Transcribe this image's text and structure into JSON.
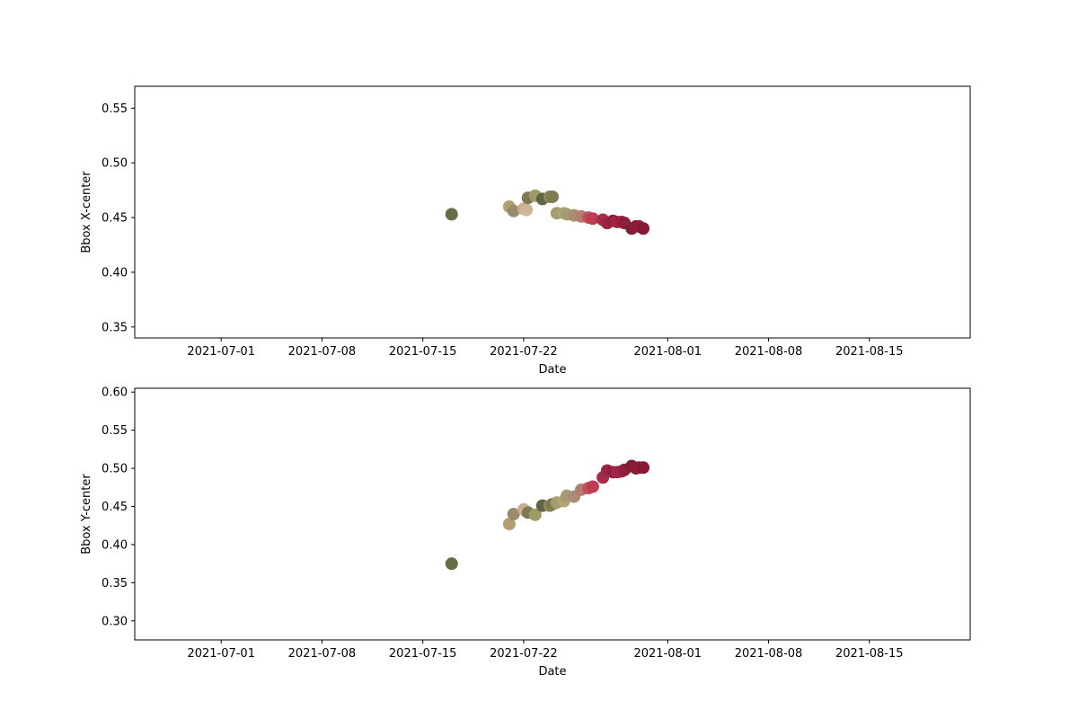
{
  "chart_data": [
    {
      "type": "scatter",
      "xlabel": "Date",
      "ylabel": "Bbox X-center",
      "x_axis_type": "date",
      "xlim": [
        "2021-06-25",
        "2021-08-22"
      ],
      "ylim": [
        0.34,
        0.57
      ],
      "x_ticks": [
        "2021-07-01",
        "2021-07-08",
        "2021-07-15",
        "2021-07-22",
        "2021-08-01",
        "2021-08-08",
        "2021-08-15"
      ],
      "y_ticks": [
        "0.35",
        "0.40",
        "0.45",
        "0.50",
        "0.55"
      ],
      "grid": false,
      "points": [
        {
          "x": "2021-07-17",
          "y": 0.453,
          "color": "#676d44"
        },
        {
          "x": "2021-07-21",
          "y": 0.46,
          "color": "#b39f72"
        },
        {
          "x": "2021-07-21.3",
          "y": 0.456,
          "color": "#9a8b6e"
        },
        {
          "x": "2021-07-22",
          "y": 0.458,
          "color": "#c9ac8a"
        },
        {
          "x": "2021-07-22.2",
          "y": 0.457,
          "color": "#d0b495"
        },
        {
          "x": "2021-07-22.3",
          "y": 0.468,
          "color": "#7c7953"
        },
        {
          "x": "2021-07-22.8",
          "y": 0.47,
          "color": "#a09a66"
        },
        {
          "x": "2021-07-23.3",
          "y": 0.467,
          "color": "#5f6443"
        },
        {
          "x": "2021-07-23.8",
          "y": 0.469,
          "color": "#8a8a5d"
        },
        {
          "x": "2021-07-24",
          "y": 0.469,
          "color": "#7d7b54"
        },
        {
          "x": "2021-07-24.3",
          "y": 0.454,
          "color": "#a49d70"
        },
        {
          "x": "2021-07-24.8",
          "y": 0.454,
          "color": "#b0a579"
        },
        {
          "x": "2021-07-25",
          "y": 0.453,
          "color": "#a69c72"
        },
        {
          "x": "2021-07-25.5",
          "y": 0.452,
          "color": "#a88c73"
        },
        {
          "x": "2021-07-26",
          "y": 0.451,
          "color": "#b37d6f"
        },
        {
          "x": "2021-07-26.5",
          "y": 0.45,
          "color": "#c24e5a"
        },
        {
          "x": "2021-07-26.8",
          "y": 0.449,
          "color": "#bd3e53"
        },
        {
          "x": "2021-07-27.5",
          "y": 0.448,
          "color": "#a72c48"
        },
        {
          "x": "2021-07-27.8",
          "y": 0.445,
          "color": "#9a2543"
        },
        {
          "x": "2021-07-28.2",
          "y": 0.447,
          "color": "#91213f"
        },
        {
          "x": "2021-07-28.5",
          "y": 0.446,
          "color": "#a22644"
        },
        {
          "x": "2021-07-28.8",
          "y": 0.446,
          "color": "#9b2242"
        },
        {
          "x": "2021-07-29",
          "y": 0.445,
          "color": "#8e1f3c"
        },
        {
          "x": "2021-07-29.5",
          "y": 0.44,
          "color": "#7b1f39"
        },
        {
          "x": "2021-07-29.8",
          "y": 0.442,
          "color": "#8a1c38"
        },
        {
          "x": "2021-07-30",
          "y": 0.442,
          "color": "#911a37"
        },
        {
          "x": "2021-07-30.3",
          "y": 0.44,
          "color": "#861a36"
        }
      ]
    },
    {
      "type": "scatter",
      "xlabel": "Date",
      "ylabel": "Bbox Y-center",
      "x_axis_type": "date",
      "xlim": [
        "2021-06-25",
        "2021-08-22"
      ],
      "ylim": [
        0.275,
        0.605
      ],
      "x_ticks": [
        "2021-07-01",
        "2021-07-08",
        "2021-07-15",
        "2021-07-22",
        "2021-08-01",
        "2021-08-08",
        "2021-08-15"
      ],
      "y_ticks": [
        "0.30",
        "0.35",
        "0.40",
        "0.45",
        "0.50",
        "0.55",
        "0.60"
      ],
      "grid": false,
      "points": [
        {
          "x": "2021-07-17",
          "y": 0.375,
          "color": "#676d44"
        },
        {
          "x": "2021-07-21",
          "y": 0.427,
          "color": "#b39f72"
        },
        {
          "x": "2021-07-21.3",
          "y": 0.44,
          "color": "#9a8b6e"
        },
        {
          "x": "2021-07-22",
          "y": 0.446,
          "color": "#c9ac8a"
        },
        {
          "x": "2021-07-22.2",
          "y": 0.443,
          "color": "#d0b495"
        },
        {
          "x": "2021-07-22.3",
          "y": 0.442,
          "color": "#7c7953"
        },
        {
          "x": "2021-07-22.8",
          "y": 0.439,
          "color": "#a09a66"
        },
        {
          "x": "2021-07-23.3",
          "y": 0.451,
          "color": "#5f6443"
        },
        {
          "x": "2021-07-23.8",
          "y": 0.451,
          "color": "#8a8a5d"
        },
        {
          "x": "2021-07-24",
          "y": 0.453,
          "color": "#7d7b54"
        },
        {
          "x": "2021-07-24.3",
          "y": 0.455,
          "color": "#a49d70"
        },
        {
          "x": "2021-07-24.8",
          "y": 0.457,
          "color": "#b0a579"
        },
        {
          "x": "2021-07-25",
          "y": 0.464,
          "color": "#a69c72"
        },
        {
          "x": "2021-07-25.5",
          "y": 0.463,
          "color": "#a88c73"
        },
        {
          "x": "2021-07-26",
          "y": 0.472,
          "color": "#b37d6f"
        },
        {
          "x": "2021-07-26.5",
          "y": 0.474,
          "color": "#c24e5a"
        },
        {
          "x": "2021-07-26.8",
          "y": 0.476,
          "color": "#bd3e53"
        },
        {
          "x": "2021-07-27.5",
          "y": 0.488,
          "color": "#a72c48"
        },
        {
          "x": "2021-07-27.8",
          "y": 0.497,
          "color": "#9a2543"
        },
        {
          "x": "2021-07-28.2",
          "y": 0.495,
          "color": "#91213f"
        },
        {
          "x": "2021-07-28.5",
          "y": 0.495,
          "color": "#a22644"
        },
        {
          "x": "2021-07-28.8",
          "y": 0.496,
          "color": "#9b2242"
        },
        {
          "x": "2021-07-29",
          "y": 0.498,
          "color": "#8e1f3c"
        },
        {
          "x": "2021-07-29.5",
          "y": 0.503,
          "color": "#7b1f39"
        },
        {
          "x": "2021-07-29.8",
          "y": 0.5,
          "color": "#8a1c38"
        },
        {
          "x": "2021-07-30",
          "y": 0.501,
          "color": "#911a37"
        },
        {
          "x": "2021-07-30.3",
          "y": 0.501,
          "color": "#861a36"
        }
      ]
    }
  ]
}
